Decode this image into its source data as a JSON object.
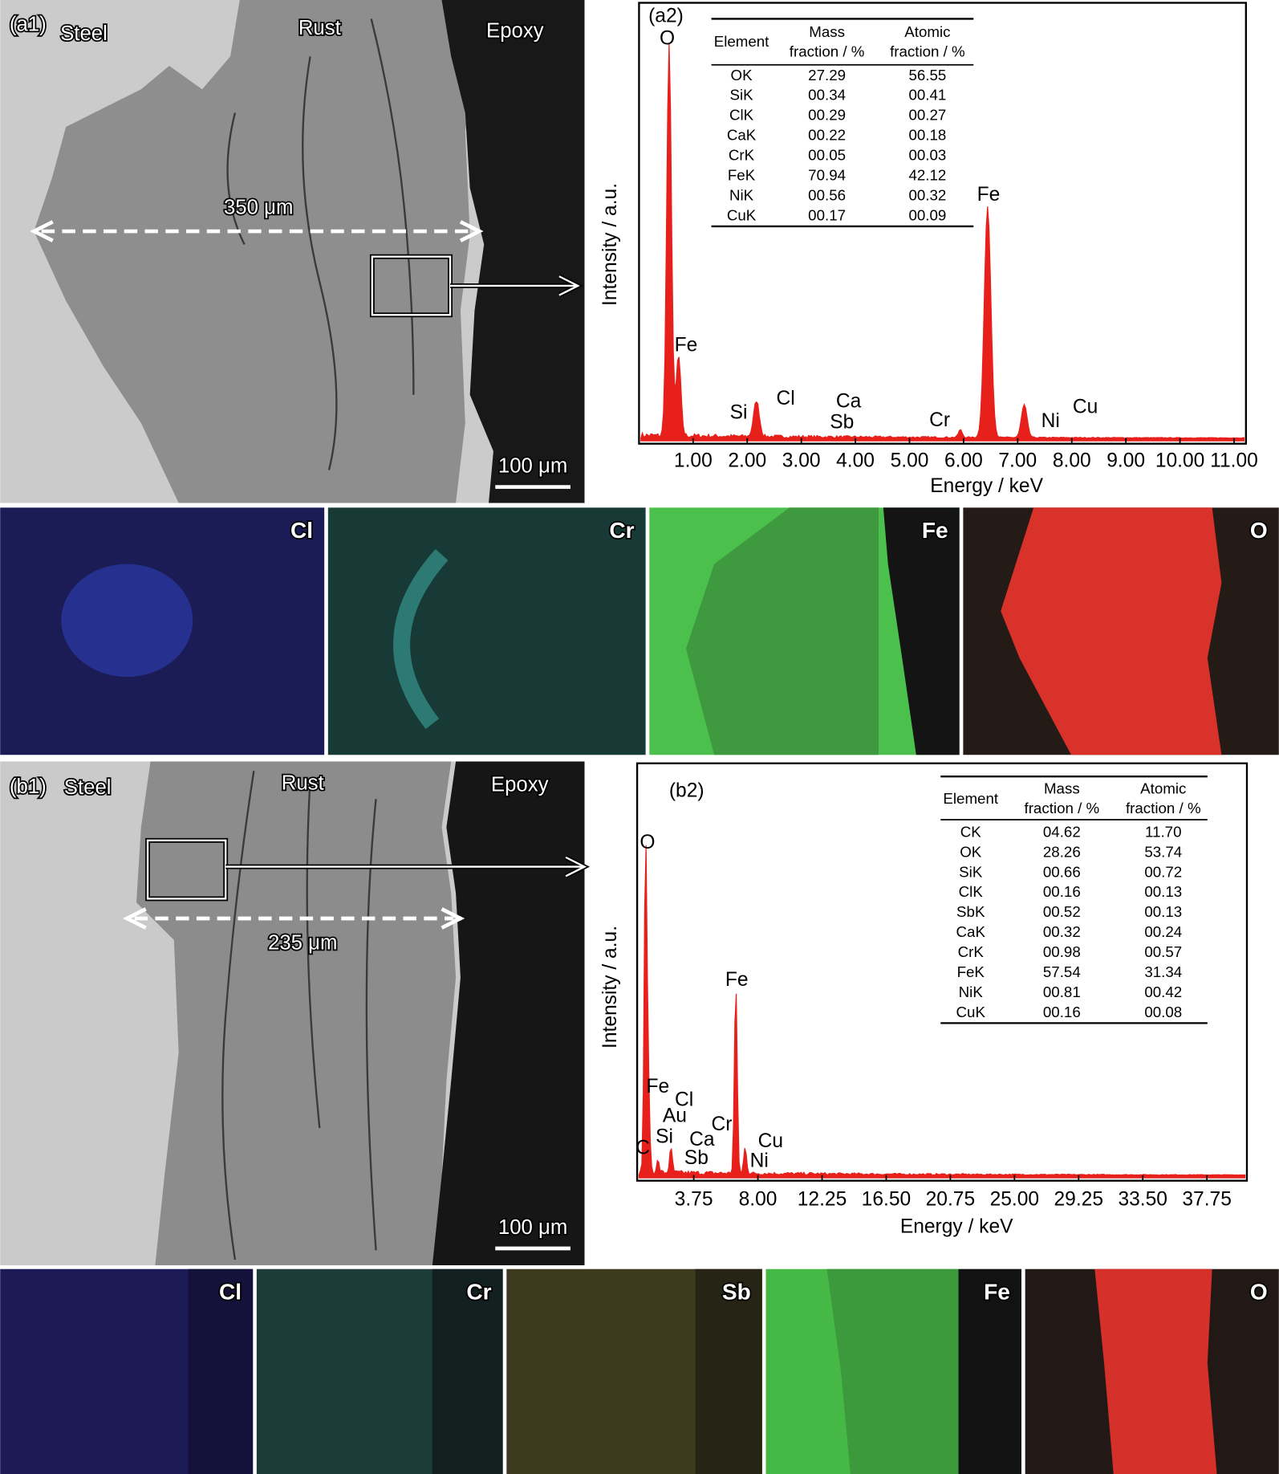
{
  "panel_a": {
    "micrograph": {
      "label": "(a1)",
      "regions": [
        "Steel",
        "Rust",
        "Epoxy"
      ],
      "thickness": "350 μm",
      "scale_bar": "100 μm"
    },
    "spectrum": {
      "label": "(a2)",
      "y_label": "Intensity / a.u.",
      "x_label": "Energy / keV",
      "xlim": [
        0,
        11.22
      ],
      "xticks": [
        {
          "value": 1,
          "label": "1.00"
        },
        {
          "value": 2,
          "label": "2.00"
        },
        {
          "value": 3,
          "label": "3.00"
        },
        {
          "value": 4,
          "label": "4.00"
        },
        {
          "value": 5,
          "label": "5.00"
        },
        {
          "value": 6,
          "label": "6.00"
        },
        {
          "value": 7,
          "label": "7.00"
        },
        {
          "value": 8,
          "label": "8.00"
        },
        {
          "value": 9,
          "label": "9.00"
        },
        {
          "value": 10,
          "label": "10.00"
        },
        {
          "value": 11,
          "label": "11.00"
        }
      ],
      "peaks": [
        "O",
        "Fe",
        "Si",
        "Cl",
        "Ca",
        "Sb",
        "Cr",
        "Fe",
        "Ni",
        "Cu"
      ],
      "table": {
        "header": [
          [
            "Element"
          ],
          [
            "Mass",
            "fraction / %"
          ],
          [
            "Atomic",
            "fraction / %"
          ]
        ],
        "rows": [
          [
            "OK",
            "27.29",
            "56.55"
          ],
          [
            "SiK",
            "00.34",
            "00.41"
          ],
          [
            "ClK",
            "00.29",
            "00.27"
          ],
          [
            "CaK",
            "00.22",
            "00.18"
          ],
          [
            "CrK",
            "00.05",
            "00.03"
          ],
          [
            "FeK",
            "70.94",
            "42.12"
          ],
          [
            "NiK",
            "00.56",
            "00.32"
          ],
          [
            "CuK",
            "00.17",
            "00.09"
          ]
        ]
      }
    },
    "maps": [
      "Cl",
      "Cr",
      "Fe",
      "O"
    ]
  },
  "panel_b": {
    "micrograph": {
      "label": "(b1)",
      "regions": [
        "Steel",
        "Rust",
        "Epoxy"
      ],
      "thickness": "235 μm",
      "scale_bar": "100 μm"
    },
    "spectrum": {
      "label": "(b2)",
      "y_label": "Intensity / a.u.",
      "x_label": "Energy / keV",
      "xlim": [
        0,
        40.4
      ],
      "xticks": [
        {
          "value": 3.75,
          "label": "3.75"
        },
        {
          "value": 8,
          "label": "8.00"
        },
        {
          "value": 12.25,
          "label": "12.25"
        },
        {
          "value": 16.5,
          "label": "16.50"
        },
        {
          "value": 20.75,
          "label": "20.75"
        },
        {
          "value": 25,
          "label": "25.00"
        },
        {
          "value": 29.25,
          "label": "29.25"
        },
        {
          "value": 33.5,
          "label": "33.50"
        },
        {
          "value": 37.75,
          "label": "37.75"
        }
      ],
      "peaks": [
        "O",
        "Fe",
        "Fe",
        "Cl",
        "Au",
        "Cr",
        "Si",
        "Ca",
        "Sb",
        "Cu",
        "Ni",
        "C"
      ],
      "table": {
        "header": [
          [
            "Element"
          ],
          [
            "Mass",
            "fraction / %"
          ],
          [
            "Atomic",
            "fraction / %"
          ]
        ],
        "rows": [
          [
            "CK",
            "04.62",
            "11.70"
          ],
          [
            "OK",
            "28.26",
            "53.74"
          ],
          [
            "SiK",
            "00.66",
            "00.72"
          ],
          [
            "ClK",
            "00.16",
            "00.13"
          ],
          [
            "SbK",
            "00.52",
            "00.13"
          ],
          [
            "CaK",
            "00.32",
            "00.24"
          ],
          [
            "CrK",
            "00.98",
            "00.57"
          ],
          [
            "FeK",
            "57.54",
            "31.34"
          ],
          [
            "NiK",
            "00.81",
            "00.42"
          ],
          [
            "CuK",
            "00.16",
            "00.08"
          ]
        ]
      }
    },
    "maps": [
      "Cl",
      "Cr",
      "Sb",
      "Fe",
      "O"
    ]
  }
}
